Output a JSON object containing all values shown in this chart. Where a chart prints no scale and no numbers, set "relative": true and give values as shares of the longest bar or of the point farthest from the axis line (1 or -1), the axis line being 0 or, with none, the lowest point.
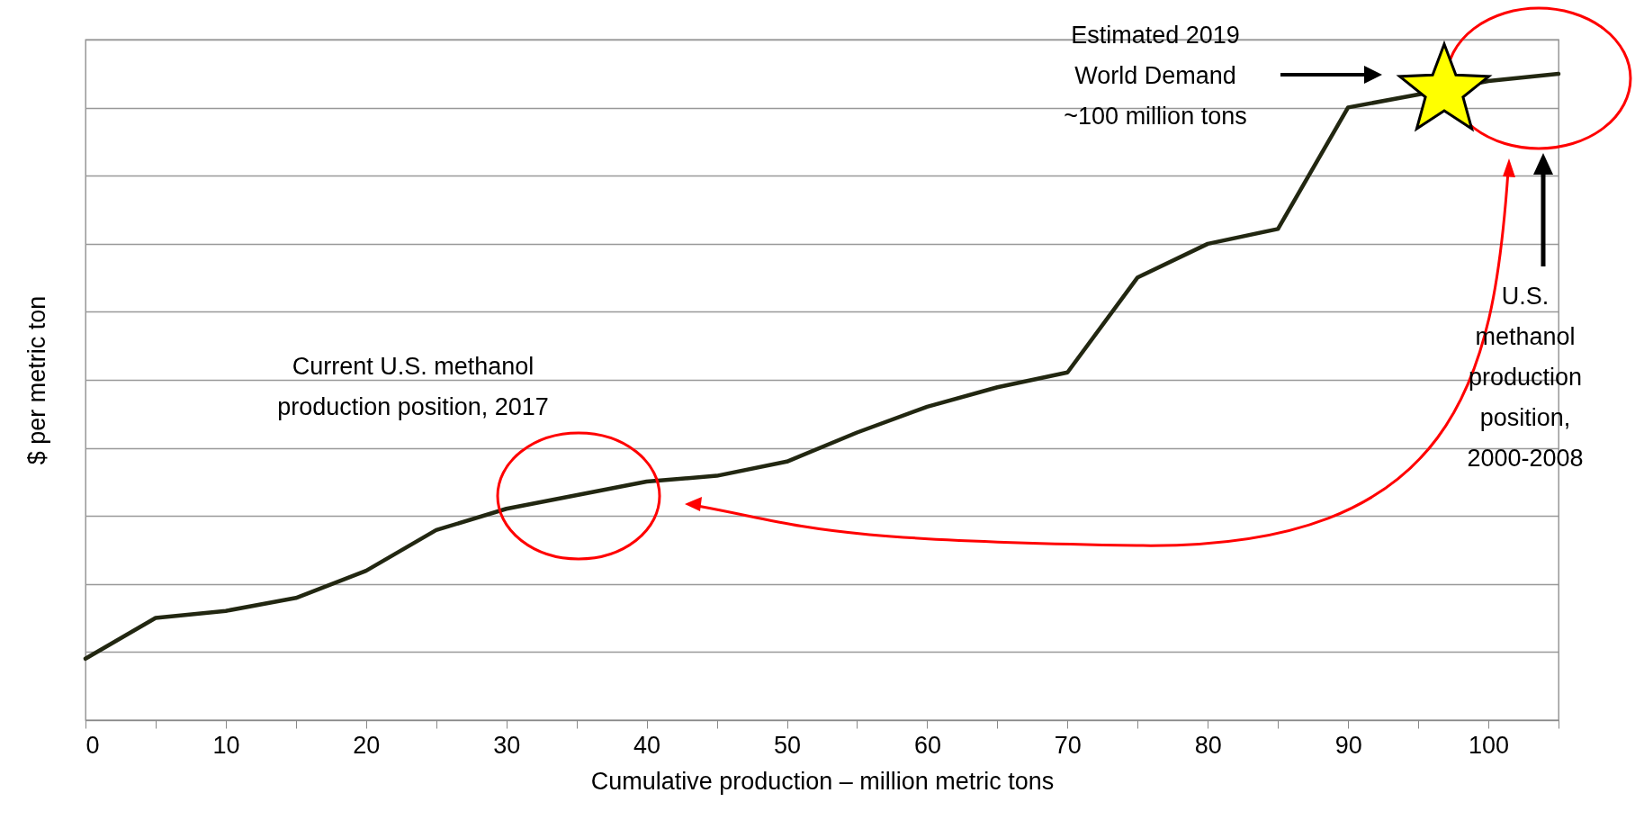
{
  "chart_data": {
    "type": "line",
    "xlabel": "Cumulative production – million metric tons",
    "ylabel": "$ per metric ton",
    "relative": true,
    "grid": "y",
    "x": [
      0,
      5,
      10,
      15,
      20,
      25,
      30,
      40,
      45,
      50,
      55,
      60,
      65,
      70,
      75,
      80,
      85,
      90,
      95,
      100,
      105
    ],
    "series": [
      {
        "color": "#222711",
        "values": [
          0.095,
          0.158,
          0.169,
          0.189,
          0.231,
          0.294,
          0.327,
          0.369,
          0.378,
          0.4,
          0.445,
          0.485,
          0.515,
          0.538,
          0.685,
          0.737,
          0.76,
          0.948,
          0.968,
          0.989,
          1
        ]
      }
    ],
    "xlim": [
      0,
      105
    ],
    "xticks": [
      0,
      {
        "value": 5,
        "label": null
      },
      10,
      {
        "value": 15,
        "label": null
      },
      20,
      {
        "value": 25,
        "label": null
      },
      30,
      {
        "value": 35,
        "label": null
      },
      40,
      {
        "value": 45,
        "label": null
      },
      50,
      {
        "value": 55,
        "label": null
      },
      60,
      {
        "value": 65,
        "label": null
      },
      70,
      {
        "value": 75,
        "label": null
      },
      80,
      {
        "value": 85,
        "label": null
      },
      90,
      {
        "value": 95,
        "label": null
      },
      100,
      {
        "value": 105,
        "label": null
      }
    ],
    "annotations": [
      "Estimated 2019\nWorld Demand\n~100 million tons",
      "Current U.S. methanol\nproduction position, 2017",
      "U.S.\nmethanol\nproduction\nposition,\n2000-2008"
    ],
    "line_style": "solid",
    "marker": "none"
  }
}
